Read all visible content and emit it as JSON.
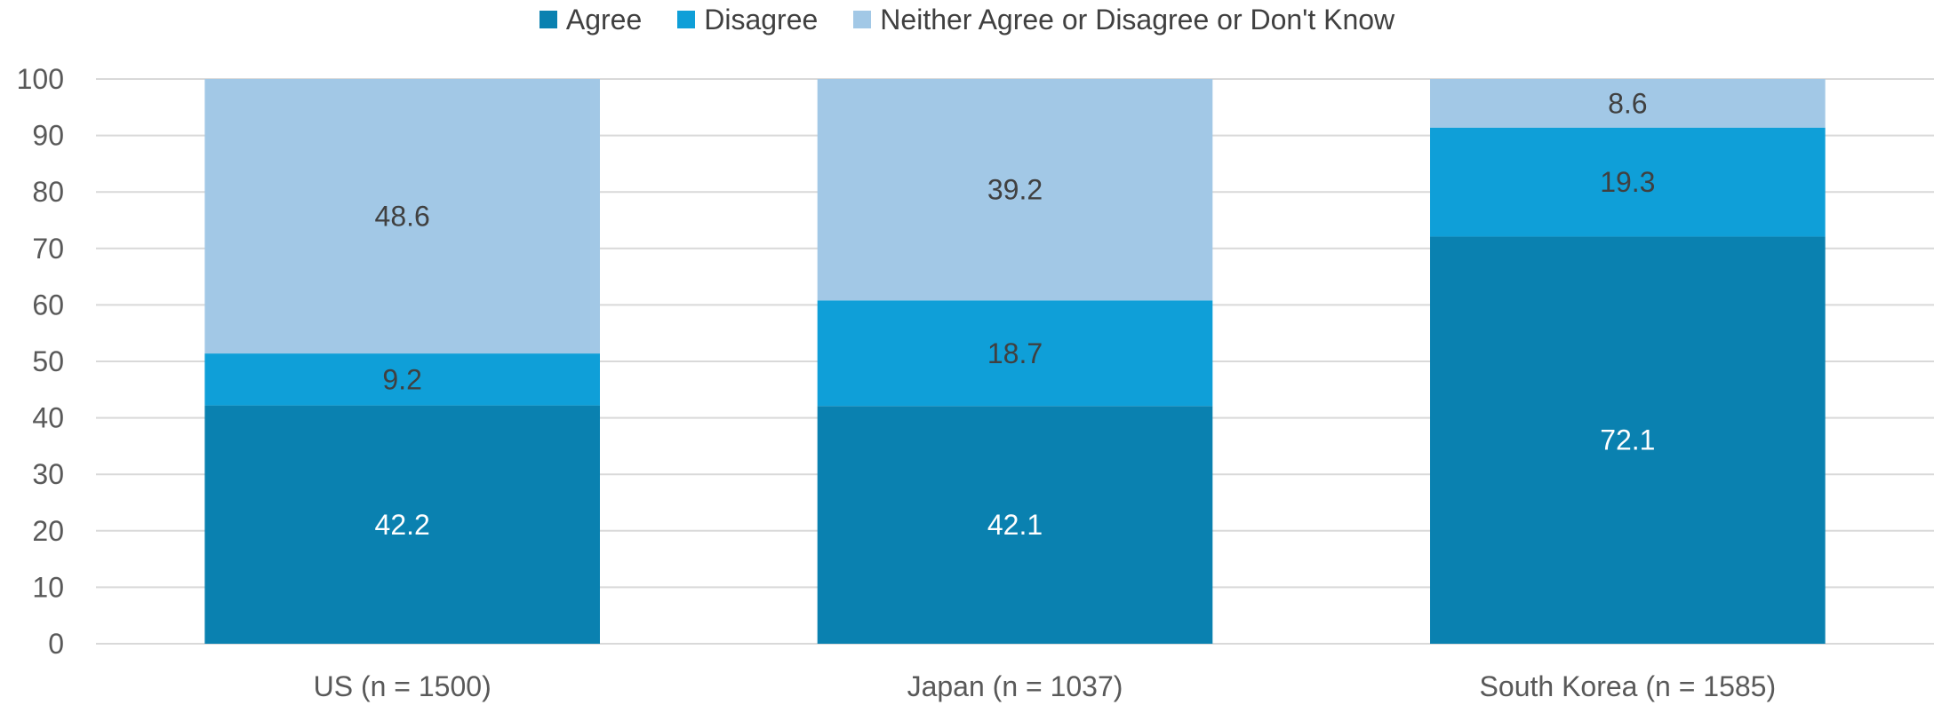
{
  "chart_data": {
    "type": "bar",
    "stacked": true,
    "categories": [
      "US (n = 1500)",
      "Japan (n = 1037)",
      "South Korea (n = 1585)"
    ],
    "series": [
      {
        "name": "Agree",
        "values": [
          42.2,
          42.1,
          72.1
        ],
        "color": "#0a81b0",
        "label_color": "#ffffff"
      },
      {
        "name": "Disagree",
        "values": [
          9.2,
          18.7,
          19.3
        ],
        "color": "#0f9fd8",
        "label_color": "#404040"
      },
      {
        "name": "Neither Agree or Disagree or Don't Know",
        "values": [
          48.6,
          39.2,
          8.6
        ],
        "color": "#a2c8e6",
        "label_color": "#404040"
      }
    ],
    "ylim": [
      0,
      100
    ],
    "yticks": [
      0,
      10,
      20,
      30,
      40,
      50,
      60,
      70,
      80,
      90,
      100
    ],
    "grid": true,
    "legend_position": "top",
    "title": "",
    "xlabel": "",
    "ylabel": ""
  }
}
